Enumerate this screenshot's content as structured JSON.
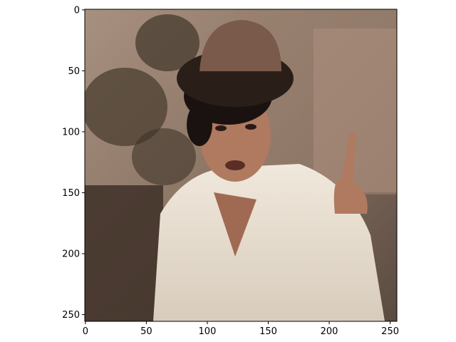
{
  "figure": {
    "description_free": true,
    "image_extent": {
      "x_min": 0,
      "x_max": 255,
      "y_min": 0,
      "y_max": 255
    },
    "x_axis": {
      "ticks": [
        0,
        50,
        100,
        150,
        200,
        250
      ],
      "tick_labels": [
        "0",
        "50",
        "100",
        "150",
        "200",
        "250"
      ]
    },
    "y_axis": {
      "inverted": true,
      "ticks": [
        0,
        50,
        100,
        150,
        200,
        250
      ],
      "tick_labels": [
        "0",
        "50",
        "100",
        "150",
        "200",
        "250"
      ]
    },
    "colors": {
      "frame": "#000000",
      "background": "#ffffff",
      "photo_backdrop": "#8a7464",
      "photo_shirt": "#e6ddd0",
      "photo_hat": "#7a5a4a",
      "photo_skin": "#b07a60",
      "photo_hair": "#1a1210"
    }
  }
}
